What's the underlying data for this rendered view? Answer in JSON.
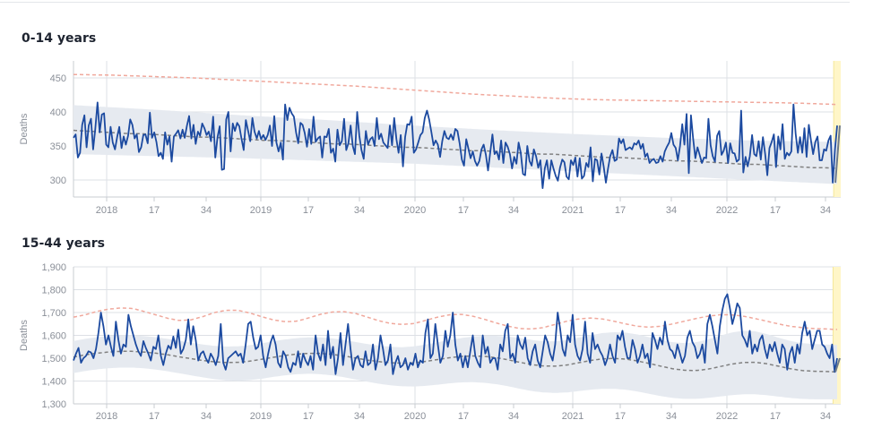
{
  "colors": {
    "observed": "#1c4aa0",
    "baseline": "#808080",
    "threshold": "#f0a89c",
    "band": "#e6eaf0",
    "grid": "#dde0e5",
    "highlight": "#fff6c8"
  },
  "chart_data": [
    {
      "type": "line",
      "title": "0-14 years",
      "ylabel": "Deaths",
      "ylim": [
        275,
        475
      ],
      "yticks": [
        300,
        350,
        400,
        450
      ],
      "ytick_labels": [
        "300",
        "350",
        "400",
        "450"
      ],
      "x_range": [
        "2017-W36",
        "2023-W38"
      ],
      "x_ticks": [
        {
          "label": "2018",
          "year": true
        },
        {
          "label": "17",
          "year": false
        },
        {
          "label": "34",
          "year": false
        },
        {
          "label": "2019",
          "year": true
        },
        {
          "label": "17",
          "year": false
        },
        {
          "label": "34",
          "year": false
        },
        {
          "label": "2020",
          "year": true
        },
        {
          "label": "17",
          "year": false
        },
        {
          "label": "34",
          "year": false
        },
        {
          "label": "2021",
          "year": true
        },
        {
          "label": "17",
          "year": false
        },
        {
          "label": "34",
          "year": false
        },
        {
          "label": "2022",
          "year": true
        },
        {
          "label": "17",
          "year": false
        },
        {
          "label": "34",
          "year": false
        }
      ],
      "observed": [
        362,
        367,
        333,
        340,
        381,
        395,
        348,
        380,
        390,
        345,
        375,
        414,
        370,
        396,
        398,
        352,
        348,
        378,
        355,
        345,
        363,
        378,
        347,
        364,
        352,
        365,
        389,
        381,
        361,
        367,
        341,
        348,
        366,
        367,
        354,
        399,
        362,
        370,
        356,
        335,
        340,
        331,
        370,
        352,
        364,
        327,
        364,
        368,
        373,
        361,
        374,
        362,
        380,
        394,
        361,
        381,
        353,
        371,
        365,
        383,
        376,
        366,
        371,
        357,
        393,
        333,
        363,
        379,
        315,
        316,
        389,
        400,
        342,
        383,
        372,
        384,
        379,
        361,
        344,
        388,
        373,
        357,
        391,
        371,
        361,
        372,
        360,
        366,
        359,
        366,
        380,
        350,
        394,
        355,
        342,
        355,
        330,
        411,
        388,
        406,
        398,
        393,
        370,
        354,
        384,
        381,
        369,
        349,
        375,
        353,
        393,
        356,
        361,
        364,
        333,
        364,
        363,
        375,
        340,
        346,
        327,
        374,
        351,
        357,
        390,
        344,
        354,
        380,
        350,
        338,
        400,
        365,
        344,
        331,
        372,
        352,
        360,
        363,
        350,
        391,
        360,
        368,
        355,
        351,
        347,
        380,
        351,
        391,
        360,
        340,
        366,
        320,
        363,
        382,
        381,
        393,
        340,
        345,
        355,
        366,
        370,
        391,
        402,
        389,
        371,
        351,
        358,
        352,
        334,
        357,
        372,
        362,
        360,
        367,
        359,
        375,
        372,
        353,
        330,
        321,
        360,
        346,
        332,
        342,
        328,
        321,
        328,
        345,
        352,
        337,
        314,
        340,
        367,
        338,
        342,
        330,
        358,
        325,
        355,
        349,
        338,
        317,
        334,
        324,
        355,
        340,
        309,
        307,
        350,
        328,
        321,
        345,
        335,
        318,
        329,
        288,
        317,
        329,
        302,
        329,
        317,
        306,
        299,
        318,
        330,
        326,
        305,
        301,
        329,
        322,
        333,
        305,
        332,
        302,
        306,
        325,
        319,
        348,
        298,
        331,
        329,
        308,
        339,
        320,
        296,
        317,
        335,
        344,
        328,
        330,
        361,
        354,
        360,
        344,
        346,
        348,
        345,
        354,
        352,
        358,
        346,
        353,
        334,
        339,
        325,
        329,
        331,
        325,
        326,
        335,
        327,
        342,
        349,
        355,
        369,
        352,
        347,
        329,
        350,
        382,
        352,
        397,
        310,
        395,
        361,
        332,
        348,
        337,
        325,
        333,
        332,
        390,
        351,
        335,
        327,
        365,
        372,
        337,
        343,
        355,
        325,
        354,
        340,
        339,
        327,
        330,
        402,
        311,
        334,
        320,
        335,
        366,
        338,
        335,
        357,
        330,
        363,
        338,
        307,
        347,
        356,
        367,
        319,
        364,
        345,
        382,
        331,
        340,
        336,
        342,
        411,
        368,
        340,
        363,
        340,
        376,
        334,
        381,
        358,
        338,
        356,
        364,
        329,
        329,
        345,
        343,
        358,
        365,
        296,
        345,
        380
      ],
      "baseline": [
        373,
        372,
        371,
        370,
        369,
        368,
        368,
        367,
        366,
        365,
        364,
        363,
        363,
        362,
        361,
        360,
        359,
        358,
        358,
        357,
        356,
        355,
        354,
        353,
        353,
        352,
        351,
        350,
        349,
        348,
        348,
        347,
        346,
        345,
        344,
        343,
        343,
        342,
        341,
        340,
        339,
        338,
        338,
        337,
        336,
        335,
        334,
        333,
        333,
        332,
        331,
        330,
        329,
        328,
        328,
        327,
        326,
        325,
        324,
        323,
        323,
        322,
        321,
        320,
        319,
        318,
        318,
        317
      ],
      "band_upper": [
        410,
        403,
        395,
        388,
        380,
        373,
        367,
        362,
        358,
        356
      ],
      "band_lower": [
        338,
        335,
        332,
        328,
        324,
        318,
        312,
        306,
        300,
        294
      ],
      "threshold": [
        455,
        454,
        452,
        450,
        447,
        444,
        441,
        438,
        434,
        430,
        426,
        423,
        420,
        418,
        417,
        416,
        415,
        414,
        413,
        411
      ],
      "highlight_last_weeks": 2,
      "final_segment": [
        296,
        380
      ]
    },
    {
      "type": "line",
      "title": "15-44 years",
      "ylabel": "Deaths",
      "ylim": [
        1300,
        1900
      ],
      "yticks": [
        1300,
        1400,
        1500,
        1600,
        1700,
        1800,
        1900
      ],
      "ytick_labels": [
        "1,300",
        "1,400",
        "1,500",
        "1,600",
        "1,700",
        "1,800",
        "1,900"
      ],
      "x_range": [
        "2017-W36",
        "2023-W38"
      ],
      "x_ticks": [
        {
          "label": "2018",
          "year": true
        },
        {
          "label": "17",
          "year": false
        },
        {
          "label": "34",
          "year": false
        },
        {
          "label": "2019",
          "year": true
        },
        {
          "label": "17",
          "year": false
        },
        {
          "label": "34",
          "year": false
        },
        {
          "label": "2020",
          "year": true
        },
        {
          "label": "17",
          "year": false
        },
        {
          "label": "34",
          "year": false
        },
        {
          "label": "2021",
          "year": true
        },
        {
          "label": "17",
          "year": false
        },
        {
          "label": "34",
          "year": false
        },
        {
          "label": "2022",
          "year": true
        },
        {
          "label": "17",
          "year": false
        },
        {
          "label": "34",
          "year": false
        }
      ],
      "observed": [
        1490,
        1520,
        1545,
        1480,
        1500,
        1510,
        1530,
        1525,
        1500,
        1540,
        1610,
        1700,
        1640,
        1560,
        1600,
        1550,
        1510,
        1660,
        1580,
        1520,
        1560,
        1550,
        1690,
        1640,
        1600,
        1560,
        1530,
        1510,
        1575,
        1545,
        1520,
        1490,
        1550,
        1540,
        1600,
        1510,
        1470,
        1520,
        1555,
        1540,
        1595,
        1545,
        1625,
        1520,
        1540,
        1580,
        1670,
        1560,
        1640,
        1580,
        1490,
        1520,
        1530,
        1500,
        1480,
        1520,
        1500,
        1470,
        1510,
        1650,
        1480,
        1450,
        1500,
        1510,
        1520,
        1530,
        1510,
        1520,
        1480,
        1560,
        1650,
        1660,
        1590,
        1540,
        1550,
        1600,
        1510,
        1460,
        1520,
        1570,
        1600,
        1560,
        1480,
        1460,
        1530,
        1510,
        1460,
        1440,
        1480,
        1470,
        1530,
        1460,
        1520,
        1490,
        1470,
        1510,
        1450,
        1600,
        1520,
        1490,
        1560,
        1470,
        1620,
        1500,
        1550,
        1430,
        1500,
        1610,
        1470,
        1560,
        1650,
        1540,
        1450,
        1500,
        1510,
        1470,
        1460,
        1530,
        1470,
        1480,
        1560,
        1450,
        1500,
        1600,
        1540,
        1470,
        1490,
        1560,
        1430,
        1480,
        1510,
        1460,
        1470,
        1500,
        1450,
        1480,
        1470,
        1520,
        1460,
        1490,
        1480,
        1610,
        1670,
        1500,
        1520,
        1650,
        1560,
        1480,
        1510,
        1620,
        1550,
        1600,
        1700,
        1560,
        1490,
        1520,
        1460,
        1510,
        1460,
        1530,
        1600,
        1510,
        1480,
        1460,
        1600,
        1520,
        1550,
        1480,
        1500,
        1500,
        1450,
        1560,
        1530,
        1620,
        1650,
        1500,
        1520,
        1480,
        1600,
        1560,
        1540,
        1590,
        1500,
        1470,
        1530,
        1560,
        1490,
        1460,
        1530,
        1600,
        1570,
        1520,
        1490,
        1560,
        1700,
        1630,
        1540,
        1510,
        1600,
        1570,
        1690,
        1560,
        1510,
        1490,
        1540,
        1660,
        1520,
        1480,
        1610,
        1540,
        1560,
        1530,
        1510,
        1470,
        1500,
        1560,
        1510,
        1480,
        1600,
        1580,
        1620,
        1550,
        1500,
        1500,
        1580,
        1540,
        1480,
        1510,
        1560,
        1500,
        1520,
        1460,
        1610,
        1580,
        1540,
        1590,
        1560,
        1660,
        1580,
        1540,
        1530,
        1500,
        1560,
        1520,
        1480,
        1510,
        1590,
        1620,
        1570,
        1550,
        1500,
        1520,
        1560,
        1480,
        1650,
        1690,
        1640,
        1580,
        1520,
        1640,
        1710,
        1760,
        1780,
        1720,
        1650,
        1690,
        1740,
        1720,
        1600,
        1580,
        1550,
        1620,
        1520,
        1560,
        1530,
        1580,
        1600,
        1540,
        1500,
        1560,
        1530,
        1570,
        1520,
        1480,
        1560,
        1540,
        1450,
        1520,
        1550,
        1480,
        1560,
        1520,
        1610,
        1660,
        1600,
        1620,
        1540,
        1580,
        1620,
        1620,
        1560,
        1550,
        1520,
        1500,
        1560,
        1440,
        1500
      ],
      "baseline": [
        1505,
        1515,
        1522,
        1527,
        1530,
        1530,
        1527,
        1522,
        1515,
        1506,
        1498,
        1490,
        1484,
        1481,
        1482,
        1487,
        1495,
        1504,
        1512,
        1518,
        1521,
        1521,
        1517,
        1510,
        1501,
        1492,
        1485,
        1480,
        1478,
        1480,
        1486,
        1494,
        1502,
        1508,
        1510,
        1508,
        1502,
        1493,
        1482,
        1472,
        1466,
        1465,
        1470,
        1480,
        1490,
        1497,
        1499,
        1496,
        1488,
        1477,
        1465,
        1454,
        1447,
        1446,
        1452,
        1463,
        1474,
        1481,
        1482,
        1476,
        1465,
        1454,
        1446,
        1443,
        1442,
        1440
      ],
      "band_upper": [
        1575,
        1585,
        1592,
        1597,
        1600,
        1600,
        1597,
        1592,
        1585,
        1576,
        1568,
        1560,
        1554,
        1551,
        1552,
        1557,
        1565,
        1574,
        1582,
        1588,
        1591,
        1591,
        1587,
        1580,
        1571,
        1562,
        1555,
        1550,
        1548,
        1552,
        1560,
        1570,
        1580,
        1588,
        1595,
        1598,
        1598,
        1595,
        1588,
        1580,
        1574,
        1574,
        1580,
        1590,
        1600,
        1610,
        1614,
        1612,
        1604,
        1592,
        1580,
        1570,
        1566,
        1570,
        1582,
        1598,
        1612,
        1620,
        1618,
        1606,
        1590,
        1576,
        1566,
        1562,
        1560,
        1558
      ],
      "band_lower": [
        1435,
        1444,
        1451,
        1456,
        1459,
        1459,
        1456,
        1450,
        1443,
        1434,
        1425,
        1416,
        1408,
        1403,
        1401,
        1404,
        1410,
        1418,
        1425,
        1430,
        1432,
        1430,
        1425,
        1417,
        1407,
        1397,
        1388,
        1381,
        1377,
        1376,
        1379,
        1384,
        1390,
        1394,
        1395,
        1392,
        1386,
        1377,
        1366,
        1356,
        1350,
        1348,
        1350,
        1356,
        1362,
        1366,
        1366,
        1362,
        1354,
        1344,
        1334,
        1326,
        1322,
        1322,
        1326,
        1332,
        1338,
        1342,
        1342,
        1338,
        1332,
        1326,
        1322,
        1320,
        1320,
        1320
      ],
      "threshold": [
        1680,
        1690,
        1705,
        1715,
        1720,
        1718,
        1705,
        1690,
        1675,
        1665,
        1668,
        1682,
        1700,
        1710,
        1710,
        1698,
        1682,
        1668,
        1660,
        1662,
        1676,
        1692,
        1702,
        1704,
        1696,
        1680,
        1664,
        1652,
        1648,
        1652,
        1666,
        1680,
        1690,
        1692,
        1684,
        1670,
        1654,
        1640,
        1630,
        1628,
        1634,
        1648,
        1662,
        1672,
        1676,
        1672,
        1662,
        1650,
        1640,
        1636,
        1640,
        1650,
        1662,
        1674,
        1684,
        1690,
        1690,
        1684,
        1674,
        1662,
        1650,
        1640,
        1634,
        1630,
        1628,
        1626
      ],
      "highlight_last_weeks": 2,
      "final_segment": [
        1440,
        1500
      ]
    }
  ]
}
